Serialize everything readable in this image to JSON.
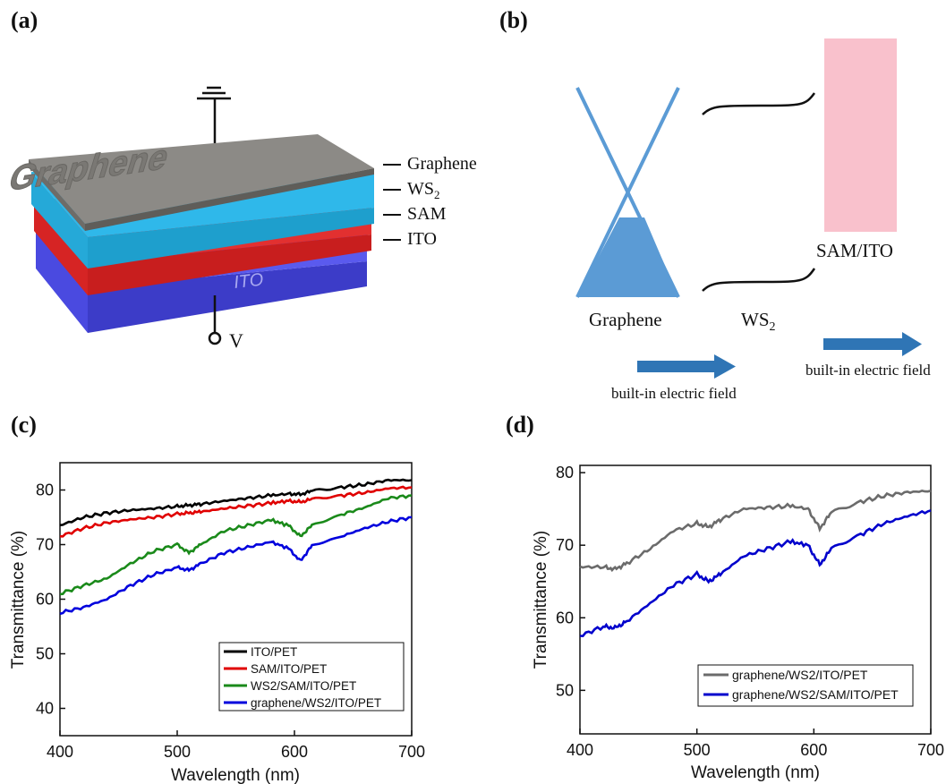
{
  "panels": {
    "a": {
      "label": "(a)",
      "layers": [
        "Graphene",
        "WS",
        "SAM",
        "ITO"
      ],
      "ws2_sub": "2",
      "graphene_surface_text": "Graphene",
      "ito_surface_text": "ITO",
      "voltage_label": "V"
    },
    "b": {
      "label": "(b)",
      "graphene_label": "Graphene",
      "ws2_label": "WS",
      "ws2_sub": "2",
      "sam_ito_label": "SAM/ITO",
      "field_label_1": "built-in electric field",
      "field_label_2": "built-in electric field"
    },
    "c": {
      "label": "(c)"
    },
    "d": {
      "label": "(d)"
    }
  },
  "colors": {
    "graphene_top": "#8c8a86",
    "ws2": "#29b5e8",
    "sam": "#e02a2a",
    "ito": "#4747d8",
    "cone": "#5b9bd5",
    "arrow": "#2f75b5",
    "pink": "#f9c1cc"
  },
  "chart_data": [
    {
      "type": "line",
      "xlabel": "Wavelength (nm)",
      "ylabel": "Transmittance (%)",
      "xlim": [
        400,
        700
      ],
      "ylim": [
        35,
        85
      ],
      "xticks": [
        400,
        500,
        600,
        700
      ],
      "yticks": [
        40,
        50,
        60,
        70,
        80
      ],
      "legend_position": "bottom-right",
      "x": [
        400,
        420,
        440,
        460,
        480,
        500,
        510,
        520,
        540,
        560,
        580,
        595,
        605,
        615,
        640,
        660,
        680,
        700
      ],
      "series": [
        {
          "name": "ITO/PET",
          "color": "#000000",
          "values": [
            73.5,
            75.0,
            75.8,
            76.3,
            76.6,
            77.0,
            77.2,
            77.4,
            78.0,
            78.5,
            79.0,
            79.3,
            79.2,
            79.8,
            80.5,
            81.0,
            81.8,
            81.8
          ]
        },
        {
          "name": "SAM/ITO/PET",
          "color": "#e00000",
          "values": [
            71.5,
            73.0,
            74.0,
            74.6,
            75.0,
            75.6,
            75.8,
            76.0,
            76.6,
            77.1,
            77.6,
            78.0,
            77.8,
            78.3,
            79.0,
            79.5,
            80.3,
            80.5
          ]
        },
        {
          "name": "WS2/SAM/ITO/PET",
          "color": "#1a8a1a",
          "values": [
            61.0,
            62.5,
            63.8,
            66.5,
            68.8,
            70.0,
            68.5,
            70.0,
            72.5,
            73.5,
            74.5,
            73.5,
            71.5,
            73.5,
            75.5,
            76.8,
            78.5,
            79.0
          ]
        },
        {
          "name": "graphene/WS2/ITO/PET",
          "color": "#0000dd",
          "values": [
            57.5,
            58.5,
            60.0,
            62.5,
            64.5,
            65.8,
            65.3,
            66.5,
            68.5,
            69.5,
            70.5,
            69.3,
            67.0,
            69.8,
            71.5,
            73.0,
            74.2,
            75.0
          ]
        }
      ]
    },
    {
      "type": "line",
      "xlabel": "Wavelength (nm)",
      "ylabel": "Transmittance (%)",
      "xlim": [
        400,
        700
      ],
      "ylim": [
        44,
        81
      ],
      "xticks": [
        400,
        500,
        600,
        700
      ],
      "yticks": [
        50,
        60,
        70,
        80
      ],
      "legend_position": "bottom-right",
      "x": [
        400,
        420,
        430,
        440,
        460,
        480,
        500,
        510,
        520,
        540,
        560,
        580,
        595,
        605,
        615,
        640,
        660,
        680,
        700
      ],
      "series": [
        {
          "name": "graphene/WS2/ITO/PET",
          "color": "#6b6b6b",
          "values": [
            67.0,
            67.0,
            66.7,
            67.5,
            69.5,
            72.0,
            73.0,
            72.5,
            73.5,
            75.0,
            75.2,
            75.4,
            75.0,
            72.3,
            74.5,
            76.0,
            76.8,
            77.3,
            77.5
          ]
        },
        {
          "name": "graphene/WS2/SAM/ITO/PET",
          "color": "#0000cc",
          "values": [
            57.5,
            58.8,
            58.6,
            59.5,
            62.0,
            64.5,
            66.0,
            65.0,
            66.0,
            68.5,
            69.5,
            70.5,
            70.0,
            67.3,
            69.5,
            71.5,
            73.0,
            74.0,
            74.8
          ]
        }
      ]
    }
  ]
}
